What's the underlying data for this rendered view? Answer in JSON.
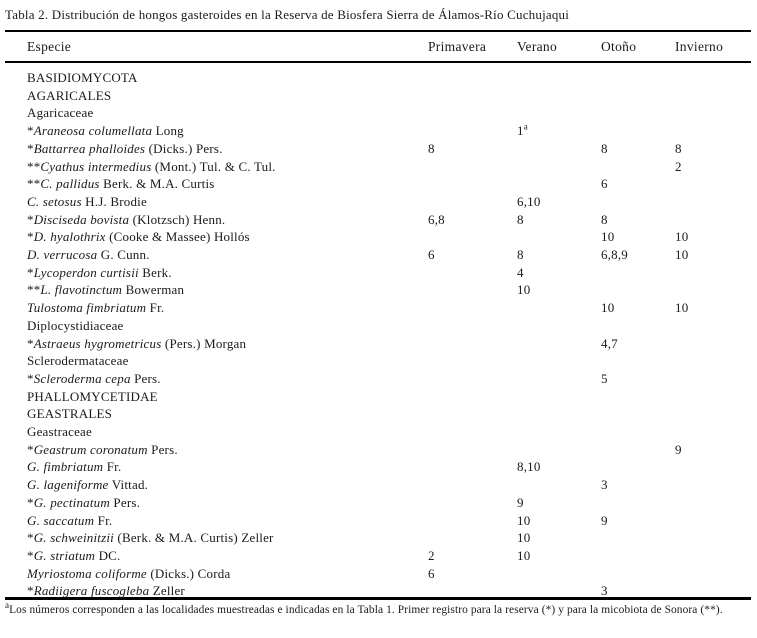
{
  "title": "Tabla 2. Distribución de hongos gasteroides en la Reserva de Biosfera Sierra de Álamos-Río Cuchujaqui",
  "table": {
    "columns": [
      "Especie",
      "Primavera",
      "Verano",
      "Otoño",
      "Invierno"
    ],
    "rows": [
      {
        "type": "group",
        "label": "BASIDIOMYCOTA",
        "primavera": "",
        "verano": "",
        "otono": "",
        "invierno": ""
      },
      {
        "type": "group",
        "label": "AGARICALES",
        "primavera": "",
        "verano": "",
        "otono": "",
        "invierno": ""
      },
      {
        "type": "group",
        "label": "Agaricaceae",
        "primavera": "",
        "verano": "",
        "otono": "",
        "invierno": ""
      },
      {
        "type": "species",
        "prefix": "*",
        "name": "Araneosa columellata",
        "authority": "Long",
        "primavera": "",
        "verano": "1^a",
        "otono": "",
        "invierno": ""
      },
      {
        "type": "species",
        "prefix": "*",
        "name": "Battarrea phalloides",
        "authority": "(Dicks.) Pers.",
        "primavera": "8",
        "verano": "",
        "otono": "8",
        "invierno": "8"
      },
      {
        "type": "species",
        "prefix": "**",
        "name": "Cyathus intermedius",
        "authority": "(Mont.) Tul. & C. Tul.",
        "primavera": "",
        "verano": "",
        "otono": "",
        "invierno": "2"
      },
      {
        "type": "species",
        "prefix": "**",
        "name": "C. pallidus",
        "authority": "Berk. & M.A. Curtis",
        "primavera": "",
        "verano": "",
        "otono": "6",
        "invierno": ""
      },
      {
        "type": "species",
        "prefix": "",
        "name": "C. setosus",
        "authority": "H.J. Brodie",
        "primavera": "",
        "verano": "6,10",
        "otono": "",
        "invierno": ""
      },
      {
        "type": "species",
        "prefix": "*",
        "name": "Disciseda bovista",
        "authority": "(Klotzsch) Henn.",
        "primavera": "6,8",
        "verano": "8",
        "otono": "8",
        "invierno": ""
      },
      {
        "type": "species",
        "prefix": "*",
        "name": "D. hyalothrix",
        "authority": "(Cooke & Massee) Hollós",
        "primavera": "",
        "verano": "",
        "otono": "10",
        "invierno": "10"
      },
      {
        "type": "species",
        "prefix": "",
        "name": "D. verrucosa",
        "authority": "G. Cunn.",
        "primavera": "6",
        "verano": "8",
        "otono": "6,8,9",
        "invierno": "10"
      },
      {
        "type": "species",
        "prefix": "*",
        "name": "Lycoperdon curtisii",
        "authority": "Berk.",
        "primavera": "",
        "verano": "4",
        "otono": "",
        "invierno": ""
      },
      {
        "type": "species",
        "prefix": "**",
        "name": "L. flavotinctum",
        "authority": "Bowerman",
        "primavera": "",
        "verano": "10",
        "otono": "",
        "invierno": ""
      },
      {
        "type": "species",
        "prefix": "",
        "name": "Tulostoma fimbriatum",
        "authority": "Fr.",
        "primavera": "",
        "verano": "",
        "otono": "10",
        "invierno": "10"
      },
      {
        "type": "group",
        "label": "Diplocystidiaceae",
        "primavera": "",
        "verano": "",
        "otono": "",
        "invierno": ""
      },
      {
        "type": "species",
        "prefix": "*",
        "name": "Astraeus hygrometricus",
        "authority": "(Pers.) Morgan",
        "primavera": "",
        "verano": "",
        "otono": "4,7",
        "invierno": ""
      },
      {
        "type": "group",
        "label": "Sclerodermataceae",
        "primavera": "",
        "verano": "",
        "otono": "",
        "invierno": ""
      },
      {
        "type": "species",
        "prefix": "*",
        "name": "Scleroderma cepa",
        "authority": "Pers.",
        "primavera": "",
        "verano": "",
        "otono": "5",
        "invierno": ""
      },
      {
        "type": "group",
        "label": "PHALLOMYCETIDAE",
        "primavera": "",
        "verano": "",
        "otono": "",
        "invierno": ""
      },
      {
        "type": "group",
        "label": "GEASTRALES",
        "primavera": "",
        "verano": "",
        "otono": "",
        "invierno": ""
      },
      {
        "type": "group",
        "label": "Geastraceae",
        "primavera": "",
        "verano": "",
        "otono": "",
        "invierno": ""
      },
      {
        "type": "species",
        "prefix": "*",
        "name": "Geastrum coronatum",
        "authority": "Pers.",
        "primavera": "",
        "verano": "",
        "otono": "",
        "invierno": "9"
      },
      {
        "type": "species",
        "prefix": "",
        "name": "G. fimbriatum",
        "authority": "Fr.",
        "primavera": "",
        "verano": "8,10",
        "otono": "",
        "invierno": ""
      },
      {
        "type": "species",
        "prefix": "",
        "name": "G. lageniforme",
        "authority": "Vittad.",
        "primavera": "",
        "verano": "",
        "otono": "3",
        "invierno": ""
      },
      {
        "type": "species",
        "prefix": "*",
        "name": "G. pectinatum",
        "authority": "Pers.",
        "primavera": "",
        "verano": "9",
        "otono": "",
        "invierno": ""
      },
      {
        "type": "species",
        "prefix": "",
        "name": "G. saccatum",
        "authority": "Fr.",
        "primavera": "",
        "verano": "10",
        "otono": "9",
        "invierno": ""
      },
      {
        "type": "species",
        "prefix": "*",
        "name": "G. schweinitzii",
        "authority": "(Berk. & M.A. Curtis) Zeller",
        "primavera": "",
        "verano": "10",
        "otono": "",
        "invierno": ""
      },
      {
        "type": "species",
        "prefix": "*",
        "name": "G. striatum",
        "authority": "DC.",
        "primavera": "2",
        "verano": "10",
        "otono": "",
        "invierno": ""
      },
      {
        "type": "species",
        "prefix": "",
        "name": "Myriostoma coliforme",
        "authority": "(Dicks.) Corda",
        "primavera": "6",
        "verano": "",
        "otono": "",
        "invierno": ""
      },
      {
        "type": "species",
        "prefix": "*",
        "name": "Radiigera fuscogleba",
        "authority": "Zeller",
        "primavera": "",
        "verano": "",
        "otono": "3",
        "invierno": ""
      }
    ]
  },
  "footnote": {
    "sup": "a",
    "text": "Los números corresponden a las localidades muestreadas e indicadas en la Tabla 1. Primer registro para la reserva (*) y para la micobiota de Sonora (**)."
  }
}
